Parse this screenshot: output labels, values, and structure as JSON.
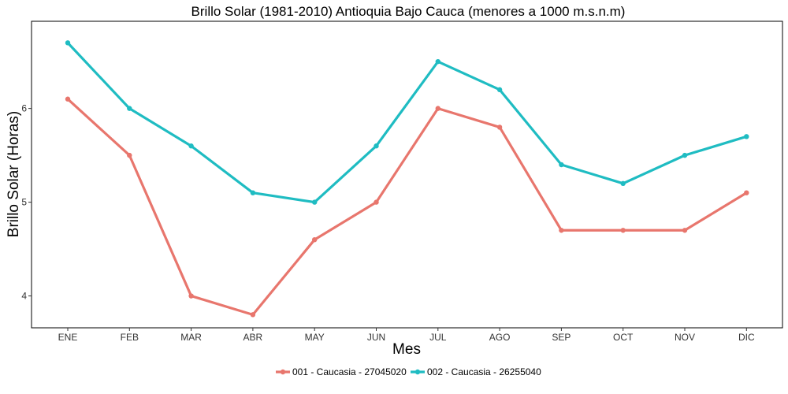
{
  "chart_data": {
    "type": "line",
    "title": "Brillo Solar (1981-2010) Antioquia Bajo Cauca (menores a 1000 m.s.n.m)",
    "xlabel": "Mes",
    "ylabel": "Brillo Solar (Horas)",
    "categories": [
      "ENE",
      "FEB",
      "MAR",
      "ABR",
      "MAY",
      "JUN",
      "JUL",
      "AGO",
      "SEP",
      "OCT",
      "NOV",
      "DIC"
    ],
    "yticks": [
      4,
      5,
      6
    ],
    "ylim": [
      3.66,
      6.93
    ],
    "grid": false,
    "legend_position": "bottom",
    "series": [
      {
        "name": "001 - Caucasia - 27045020",
        "color": "#e8766d",
        "values": [
          6.1,
          5.5,
          4.0,
          3.8,
          4.6,
          5.0,
          6.0,
          5.8,
          4.7,
          4.7,
          4.7,
          5.1
        ]
      },
      {
        "name": "002 - Caucasia - 26255040",
        "color": "#1fbcc2",
        "values": [
          6.7,
          6.0,
          5.6,
          5.1,
          5.0,
          5.6,
          6.5,
          6.2,
          5.4,
          5.2,
          5.5,
          5.7
        ]
      }
    ]
  }
}
